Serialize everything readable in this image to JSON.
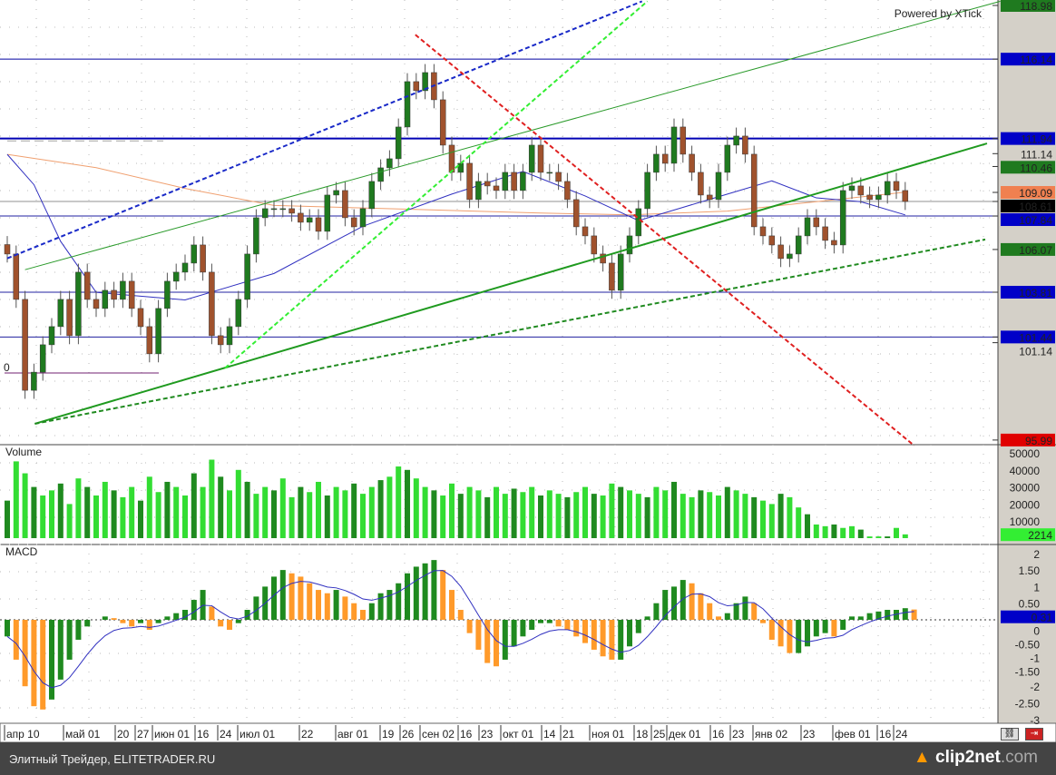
{
  "watermark": "Powered by XTick",
  "footer": {
    "left": "Элитный Трейдер, ELITETRADER.RU",
    "brand": "clip2net",
    "brand_suffix": ".com"
  },
  "chart_data": [
    {
      "type": "candlestick",
      "panel": "price",
      "ylim": [
        95.99,
        118.98
      ],
      "price_labels": [
        {
          "value": "118.98",
          "color": "#1f7a1f"
        },
        {
          "value": "116.14",
          "color": "#0000c8"
        },
        {
          "value": "111.94",
          "color": "#0000c8"
        },
        {
          "value": "111.14",
          "color": ""
        },
        {
          "value": "110.46",
          "color": "#1f7a1f"
        },
        {
          "value": "109.09",
          "color": "#f08050"
        },
        {
          "value": "108.61",
          "color": "#000000"
        },
        {
          "value": "107.84",
          "color": "#0000c8"
        },
        {
          "value": "106.07",
          "color": "#1f7a1f"
        },
        {
          "value": "103.81",
          "color": "#0000c8"
        },
        {
          "value": "101.44",
          "color": "#0000c8"
        },
        {
          "value": "101.14",
          "color": ""
        },
        {
          "value": "95.99",
          "color": "#e00000"
        }
      ],
      "close": [
        105.83,
        103.43,
        98.62,
        99.58,
        101.03,
        101.99,
        103.43,
        101.51,
        104.87,
        103.43,
        102.95,
        103.91,
        103.43,
        104.39,
        102.95,
        101.99,
        100.55,
        102.95,
        104.39,
        104.87,
        105.35,
        106.31,
        104.87,
        101.51,
        101.03,
        101.99,
        103.43,
        105.83,
        107.75,
        108.23,
        108.23,
        108.23,
        107.99,
        107.51,
        107.75,
        107.03,
        108.95,
        109.19,
        107.75,
        107.27,
        108.23,
        109.67,
        110.39,
        110.87,
        112.55,
        114.95,
        114.47,
        115.43,
        113.99,
        111.59,
        110.15,
        110.63,
        108.71,
        109.67,
        109.43,
        109.19,
        110.15,
        109.19,
        110.15,
        111.59,
        110.15,
        110.15,
        109.67,
        108.71,
        107.27,
        106.79,
        105.83,
        105.35,
        103.91,
        105.83,
        106.79,
        108.23,
        110.15,
        111.11,
        110.63,
        112.55,
        111.11,
        110.15,
        108.95,
        108.71,
        110.15,
        111.59,
        112.07,
        111.11,
        107.27,
        106.79,
        106.31,
        105.59,
        105.83,
        106.79,
        107.75,
        107.27,
        106.55,
        106.31,
        109.19,
        109.43,
        108.95,
        108.71,
        108.95,
        109.67,
        109.19,
        108.61
      ],
      "ma_fast": [
        [
          0,
          111.1
        ],
        [
          3,
          109.5
        ],
        [
          6,
          106.5
        ],
        [
          10,
          103.8
        ],
        [
          20,
          103.4
        ],
        [
          30,
          104.8
        ],
        [
          40,
          107.3
        ],
        [
          50,
          109.0
        ],
        [
          58,
          110.2
        ],
        [
          65,
          108.9
        ],
        [
          71,
          107.6
        ],
        [
          76,
          108.3
        ],
        [
          81,
          109.0
        ],
        [
          86,
          109.7
        ],
        [
          91,
          108.8
        ],
        [
          96,
          108.6
        ],
        [
          101,
          107.9
        ]
      ],
      "ma_slow": [
        [
          0,
          111.1
        ],
        [
          10,
          110.4
        ],
        [
          20,
          109.3
        ],
        [
          30,
          108.4
        ],
        [
          45,
          108.2
        ],
        [
          60,
          108.0
        ],
        [
          70,
          107.9
        ],
        [
          81,
          108.1
        ],
        [
          91,
          108.6
        ],
        [
          101,
          109.1
        ]
      ],
      "hlines": [
        {
          "price": 116.14,
          "color": "#0000a0",
          "style": "solid"
        },
        {
          "price": 111.94,
          "color": "#0000b4",
          "style": "thick"
        },
        {
          "price": 111.14,
          "color": "#a0a0a0",
          "style": "dash-short"
        },
        {
          "price": 108.61,
          "color": "#909090",
          "style": "solid"
        },
        {
          "price": 107.84,
          "color": "#2020a0",
          "style": "solid"
        },
        {
          "price": 103.81,
          "color": "#2020a0",
          "style": "solid"
        },
        {
          "price": 101.44,
          "color": "#2020a0",
          "style": "solid"
        }
      ],
      "trendlines": [
        {
          "from": [
            3.1,
            96.85
          ],
          "to": [
            110.2,
            111.68
          ],
          "color": "#1f9a1f",
          "style": "solid-thick"
        },
        {
          "from": [
            3.1,
            96.85
          ],
          "to": [
            110,
            106.6
          ],
          "color": "#1f8a1f",
          "style": "dashed"
        },
        {
          "from": [
            2.0,
            105.0
          ],
          "to": [
            111.7,
            119.2
          ],
          "color": "#2a9a2a",
          "style": "thin"
        },
        {
          "from": [
            0,
            105.6
          ],
          "to": [
            71.4,
            119.2
          ],
          "color": "#1a2ac8",
          "style": "dashed"
        },
        {
          "from": [
            24.5,
            99.8
          ],
          "to": [
            72,
            119.2
          ],
          "color": "#33ee33",
          "style": "dashed"
        },
        {
          "from": [
            45.9,
            117.43
          ],
          "to": [
            102,
            95.7
          ],
          "color": "#e02020",
          "style": "dashed"
        }
      ],
      "marker_label": "0"
    },
    {
      "type": "bar",
      "panel": "volume",
      "title": "Volume",
      "ylim": [
        0,
        50000
      ],
      "ticks": [
        "50000",
        "40000",
        "30000",
        "20000",
        "10000"
      ],
      "last_label": "2214",
      "values": [
        22000,
        45000,
        38000,
        30000,
        25000,
        28000,
        32000,
        20000,
        35000,
        30000,
        25000,
        33000,
        28000,
        24000,
        30000,
        22000,
        36000,
        27000,
        33000,
        30000,
        25000,
        38000,
        30000,
        46000,
        36000,
        28000,
        40000,
        33000,
        26000,
        30000,
        28000,
        35000,
        24000,
        30000,
        27000,
        33000,
        25000,
        30000,
        28000,
        32000,
        26000,
        30000,
        34000,
        36000,
        42000,
        40000,
        35000,
        30000,
        28000,
        25000,
        32000,
        26000,
        30000,
        28000,
        24000,
        30000,
        26000,
        29000,
        27000,
        30000,
        25000,
        28000,
        26000,
        24000,
        27000,
        30000,
        26000,
        25000,
        32000,
        30000,
        28000,
        26000,
        24000,
        30000,
        28000,
        33000,
        26000,
        24000,
        28000,
        27000,
        25000,
        30000,
        28000,
        26000,
        24000,
        22000,
        20000,
        26000,
        24000,
        18000,
        14000,
        8000,
        7000,
        8000,
        6000,
        7000,
        5000,
        1000,
        1000,
        1000,
        6000,
        2214
      ]
    },
    {
      "type": "bar",
      "panel": "macd",
      "title": "MACD",
      "ylim": [
        -3,
        2
      ],
      "ticks": [
        "2",
        "1.50",
        "1",
        "0.50",
        "0",
        "-0.50",
        "-1",
        "-1.50",
        "-2",
        "-2.50",
        "-3"
      ],
      "last_label": "0.31",
      "values": [
        -0.5,
        -1.2,
        -2.0,
        -2.6,
        -2.7,
        -2.4,
        -1.8,
        -1.2,
        -0.6,
        -0.2,
        0,
        0.1,
        0.05,
        -0.1,
        -0.2,
        -0.1,
        -0.3,
        -0.1,
        0.1,
        0.2,
        0.3,
        0.6,
        0.9,
        0.4,
        -0.2,
        -0.3,
        -0.1,
        0.3,
        0.7,
        1.0,
        1.3,
        1.5,
        1.4,
        1.3,
        1.1,
        0.9,
        0.8,
        0.9,
        0.7,
        0.5,
        0.3,
        0.5,
        0.8,
        0.9,
        1.1,
        1.4,
        1.6,
        1.7,
        1.8,
        1.5,
        0.9,
        0.3,
        -0.4,
        -0.9,
        -1.3,
        -1.4,
        -1.2,
        -0.8,
        -0.5,
        -0.3,
        -0.1,
        -0.1,
        -0.2,
        -0.3,
        -0.5,
        -0.7,
        -0.9,
        -1.1,
        -1.2,
        -1.2,
        -0.8,
        -0.4,
        0.1,
        0.5,
        0.9,
        1.0,
        1.2,
        1.1,
        0.8,
        0.5,
        0.1,
        0.2,
        0.5,
        0.7,
        0.5,
        -0.1,
        -0.6,
        -0.8,
        -1.0,
        -1.0,
        -0.8,
        -0.5,
        -0.4,
        -0.5,
        -0.3,
        0.1,
        0.1,
        0.2,
        0.25,
        0.3,
        0.3,
        0.35,
        0.31
      ]
    }
  ],
  "x_ticks": [
    "апр 10",
    "май 01",
    "20",
    "27",
    "июн 01",
    "16",
    "24",
    "июл 01",
    "22",
    "авг 01",
    "19",
    "26",
    "сен 02",
    "16",
    "23",
    "окт 01",
    "14",
    "21",
    "ноя 01",
    "18",
    "25",
    "дек 01",
    "16",
    "23",
    "янв 02",
    "23",
    "фев 01",
    "16",
    "24"
  ],
  "colors": {
    "up": "#1f7a1f",
    "down": "#a0522d",
    "vol_a": "#33dd33",
    "vol_b": "#1f8a1f",
    "macd_up": "#1f8a1f",
    "macd_down": "#ff9a2a",
    "axis_bg": "#d4d0c8"
  }
}
